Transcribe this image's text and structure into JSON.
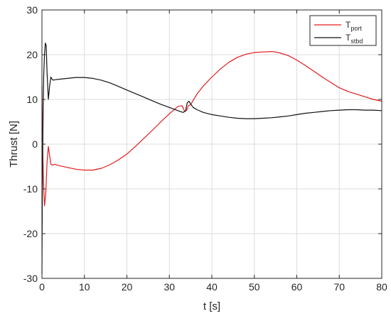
{
  "chart_data": {
    "type": "line",
    "title": "",
    "xlabel": "t [s]",
    "ylabel": "Thrust [N]",
    "xlim": [
      0,
      80
    ],
    "ylim": [
      -30,
      30
    ],
    "xticks": [
      0,
      10,
      20,
      30,
      40,
      50,
      60,
      70,
      80
    ],
    "yticks": [
      -30,
      -20,
      -10,
      0,
      10,
      20,
      30
    ],
    "grid": true,
    "legend_position": "top-right",
    "legend": [
      {
        "base": "T",
        "sub": "port"
      },
      {
        "base": "T",
        "sub": "stbd"
      }
    ],
    "series": [
      {
        "name": "T_port",
        "color": "#e31a1c",
        "x": [
          0,
          0.15,
          0.35,
          0.6,
          0.9,
          1.2,
          1.5,
          1.8,
          2.1,
          2.5,
          3,
          4,
          6,
          8,
          10,
          12,
          14,
          16,
          18,
          20,
          22,
          24,
          26,
          28,
          30,
          32,
          33,
          33.6,
          34.1,
          34.5,
          35,
          35.6,
          36.5,
          38,
          40,
          42,
          44,
          46,
          48,
          50,
          52,
          54,
          55,
          56,
          58,
          60,
          62,
          64,
          66,
          68,
          70,
          72,
          74,
          76,
          78,
          80
        ],
        "y": [
          13,
          0,
          -8,
          -13.8,
          -11,
          -4,
          -0.5,
          -2.5,
          -4.5,
          -4.7,
          -4.5,
          -4.8,
          -5.2,
          -5.6,
          -5.8,
          -5.8,
          -5.4,
          -4.6,
          -3.5,
          -2.2,
          -0.5,
          1.3,
          3.1,
          5.0,
          6.8,
          8.4,
          8.6,
          7.3,
          7.6,
          8.6,
          8.8,
          9.8,
          11.2,
          13.0,
          15.0,
          16.8,
          18.3,
          19.4,
          20.1,
          20.5,
          20.6,
          20.7,
          20.6,
          20.4,
          19.8,
          18.8,
          17.6,
          16.3,
          15.0,
          13.8,
          12.6,
          11.8,
          11.2,
          10.6,
          10.0,
          9.6
        ]
      },
      {
        "name": "T_stbd",
        "color": "#111111",
        "x": [
          0,
          0.1,
          0.25,
          0.4,
          0.6,
          0.8,
          1.0,
          1.2,
          1.5,
          1.8,
          2.1,
          2.4,
          2.7,
          3,
          4,
          6,
          8,
          10,
          12,
          14,
          16,
          18,
          20,
          22,
          24,
          26,
          28,
          30,
          32,
          33.2,
          33.8,
          34.2,
          34.6,
          35,
          35.6,
          36.5,
          38,
          40,
          42,
          44,
          46,
          48,
          50,
          52,
          54,
          56,
          58,
          60,
          62,
          64,
          66,
          68,
          70,
          72,
          74,
          76,
          78,
          80
        ],
        "y": [
          -29,
          -10,
          5,
          15,
          20,
          22.6,
          22,
          16,
          10,
          13,
          15,
          14.5,
          14.3,
          14.4,
          14.5,
          14.7,
          14.9,
          14.9,
          14.7,
          14.3,
          13.7,
          12.9,
          12.1,
          11.3,
          10.5,
          9.7,
          8.9,
          8.2,
          7.5,
          7.1,
          7.4,
          9.2,
          9.6,
          9.0,
          8.2,
          7.7,
          7.1,
          6.6,
          6.3,
          6.0,
          5.8,
          5.7,
          5.7,
          5.8,
          5.9,
          6.1,
          6.3,
          6.6,
          6.9,
          7.1,
          7.3,
          7.5,
          7.6,
          7.7,
          7.7,
          7.6,
          7.6,
          7.5
        ]
      }
    ]
  }
}
